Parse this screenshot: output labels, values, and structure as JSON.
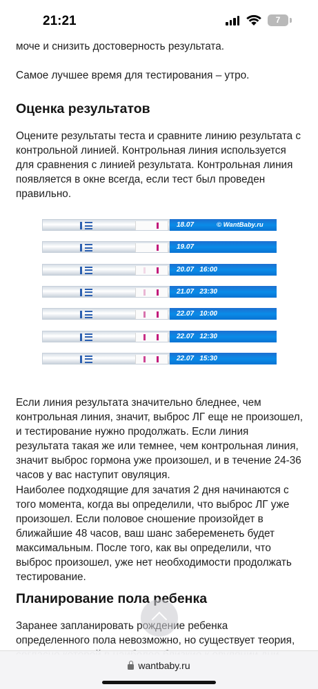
{
  "status_bar": {
    "time": "21:21",
    "battery_level": "7"
  },
  "article": {
    "clipped_line": "моче и снизить достоверность результата.",
    "best_time": "Самое лучшее время для тестирования – утро.",
    "heading_results": "Оценка результатов",
    "results_intro": "Оцените результаты теста и сравните линию результата с контрольной линией. Контрольная линия используется для сравнения с линией результата. Контрольная линия появляется в окне всегда, если тест был проведен правильно.",
    "interpretation": "Если линия результата значительно бледнее, чем контрольная линия, значит, выброс ЛГ еще не произошел, и тестирование нужно продолжать. Если линия результата такая же или темнее, чем контрольная линия, значит выброс гормона уже произошел, и в течение 24-36 часов у вас наступит овуляция.",
    "conception": "Наиболее подходящие для зачатия 2 дня начинаются с того момента, когда вы определили, что выброс ЛГ уже произошел. Если половое сношение произойдет в ближайшие 48 часов, ваш шанс забеременеть будет максимальным. После того, как вы определили, что выброс произошел, уже нет необходимости продолжать тестирование.",
    "heading_planning": "Планирование пола ребенка",
    "planning_text": "Заранее запланировать рождение ребенка определенного пола невозможно, но существует теория, согласно которой в наиболее близкие к овуляции дни"
  },
  "strips": {
    "watermark": "© WantBaby.ru",
    "control_color": "#c2187a",
    "items": [
      {
        "label": "18.07",
        "test_intensity": 0.0
      },
      {
        "label": "19.07",
        "test_intensity": 0.0
      },
      {
        "label": "20.07   16:00",
        "test_intensity": 0.15
      },
      {
        "label": "21.07   23:30",
        "test_intensity": 0.3
      },
      {
        "label": "22.07   10:00",
        "test_intensity": 0.6
      },
      {
        "label": "22.07   12:30",
        "test_intensity": 0.9
      },
      {
        "label": "22.07   15:30",
        "test_intensity": 0.8
      }
    ]
  },
  "browser": {
    "address": "wantbaby.ru"
  }
}
